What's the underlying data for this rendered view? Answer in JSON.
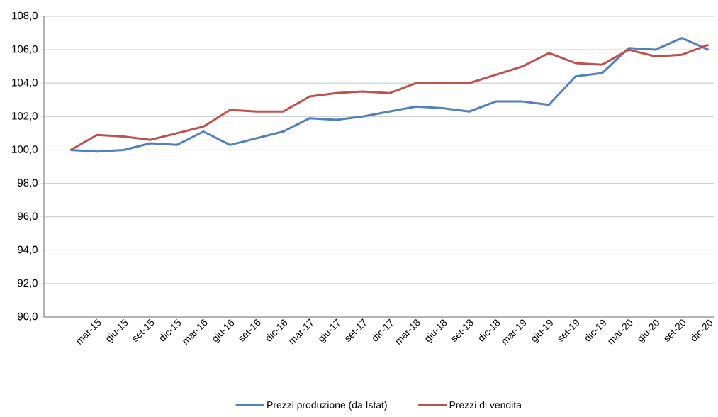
{
  "chart_data": {
    "type": "line",
    "categories": [
      null,
      "mar-15",
      "giu-15",
      "set-15",
      "dic-15",
      "mar-16",
      "giu-16",
      "set-16",
      "dic-16",
      "mar-17",
      "giu-17",
      "set-17",
      "dic-17",
      "mar-18",
      "giu-18",
      "set-18",
      "dic-18",
      "mar-19",
      "giu-19",
      "set-19",
      "dic-19",
      "mar-20",
      "giu-20",
      "set-20",
      "dic-20"
    ],
    "series": [
      {
        "name": "Prezzi produzione (da Istat)",
        "color": "#4f81bd",
        "values": [
          100.0,
          99.9,
          100.0,
          100.4,
          100.3,
          101.1,
          100.3,
          100.7,
          101.1,
          101.9,
          101.8,
          102.0,
          102.3,
          102.6,
          102.5,
          102.3,
          102.9,
          102.9,
          102.7,
          104.4,
          104.6,
          106.1,
          106.0,
          106.7,
          106.0
        ]
      },
      {
        "name": "Prezzi di vendita",
        "color": "#c0504d",
        "values": [
          100.0,
          100.9,
          100.8,
          100.6,
          101.0,
          101.4,
          102.4,
          102.3,
          102.3,
          103.2,
          103.4,
          103.5,
          103.4,
          104.0,
          104.0,
          104.0,
          104.5,
          105.0,
          105.8,
          105.2,
          105.1,
          106.0,
          105.6,
          105.7,
          106.3
        ]
      }
    ],
    "ylim": [
      90,
      108
    ],
    "yticks": [
      {
        "value": 90,
        "label": "90,0"
      },
      {
        "value": 92,
        "label": "92,0"
      },
      {
        "value": 94,
        "label": "94,0"
      },
      {
        "value": 96,
        "label": "96,0"
      },
      {
        "value": 98,
        "label": "98,0"
      },
      {
        "value": 100,
        "label": "100,0"
      },
      {
        "value": 102,
        "label": "102,0"
      },
      {
        "value": 104,
        "label": "104,0"
      },
      {
        "value": 106,
        "label": "106,0"
      },
      {
        "value": 108,
        "label": "108,0"
      }
    ],
    "grid": "y",
    "legend": "bottom",
    "marker": "none",
    "line_style": "solid"
  }
}
